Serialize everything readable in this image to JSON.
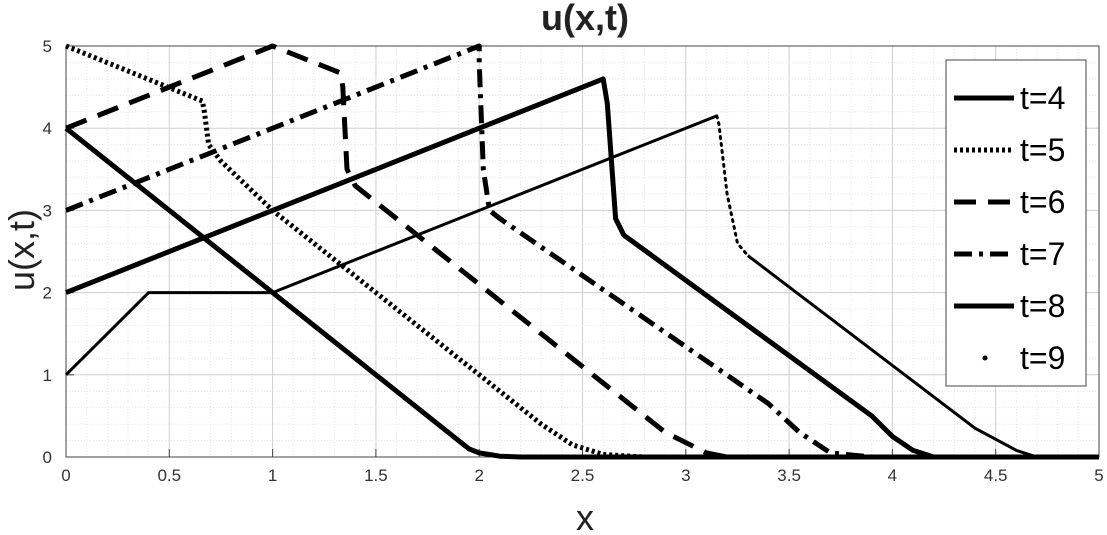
{
  "chart_data": {
    "type": "line",
    "title": "u(x,t)",
    "xlabel": "x",
    "ylabel": "u(x,t)",
    "xlim": [
      0,
      5
    ],
    "ylim": [
      0,
      5
    ],
    "xticks": [
      "0",
      "0.5",
      "1",
      "1.5",
      "2",
      "2.5",
      "3",
      "3.5",
      "4",
      "4.5",
      "5"
    ],
    "yticks": [
      "0",
      "1",
      "2",
      "3",
      "4",
      "5"
    ],
    "grid": "major and minor (dotted)",
    "legend_position": "top-right",
    "series": [
      {
        "name": "t=4",
        "style": "solid-thick",
        "x": [
          0,
          1,
          1.95,
          2.0,
          2.1,
          2.2,
          5
        ],
        "y": [
          4,
          2,
          0.1,
          0.05,
          0.01,
          0,
          0
        ]
      },
      {
        "name": "t=5",
        "style": "dotted",
        "x": [
          0,
          0.66,
          0.67,
          0.69,
          0.75,
          1.0,
          2.3,
          2.45,
          2.6,
          2.8,
          5
        ],
        "y": [
          5,
          4.33,
          4.2,
          3.8,
          3.6,
          3.0,
          0.4,
          0.15,
          0.03,
          0,
          0
        ]
      },
      {
        "name": "t=6",
        "style": "dashed",
        "x": [
          0,
          1,
          1.33,
          1.34,
          1.36,
          1.4,
          2.9,
          3.1,
          3.2,
          5
        ],
        "y": [
          4,
          5,
          4.67,
          4.5,
          3.5,
          3.3,
          0.3,
          0.05,
          0,
          0
        ]
      },
      {
        "name": "t=7",
        "style": "dashdot",
        "x": [
          0,
          2,
          2.0,
          2.02,
          2.05,
          2.1,
          3.4,
          3.55,
          3.7,
          3.9,
          5
        ],
        "y": [
          3,
          5,
          4.8,
          3.5,
          3.0,
          2.9,
          0.65,
          0.3,
          0.05,
          0,
          0
        ]
      },
      {
        "name": "t=8",
        "style": "solid-thick",
        "x": [
          0,
          2.6,
          2.62,
          2.66,
          2.7,
          3.9,
          4.0,
          4.1,
          4.2,
          5
        ],
        "y": [
          2,
          4.6,
          4.3,
          2.9,
          2.7,
          0.5,
          0.25,
          0.08,
          0,
          0
        ]
      },
      {
        "name": "t=9",
        "style": "thin-solid-with-dotted-shock",
        "x": [
          0,
          0.4,
          1,
          3.15,
          3.16,
          3.2,
          3.25,
          3.3,
          4.4,
          4.6,
          4.7,
          5
        ],
        "y": [
          1,
          2,
          2,
          4.15,
          4.05,
          3.2,
          2.6,
          2.45,
          0.35,
          0.08,
          0,
          0
        ]
      }
    ]
  }
}
